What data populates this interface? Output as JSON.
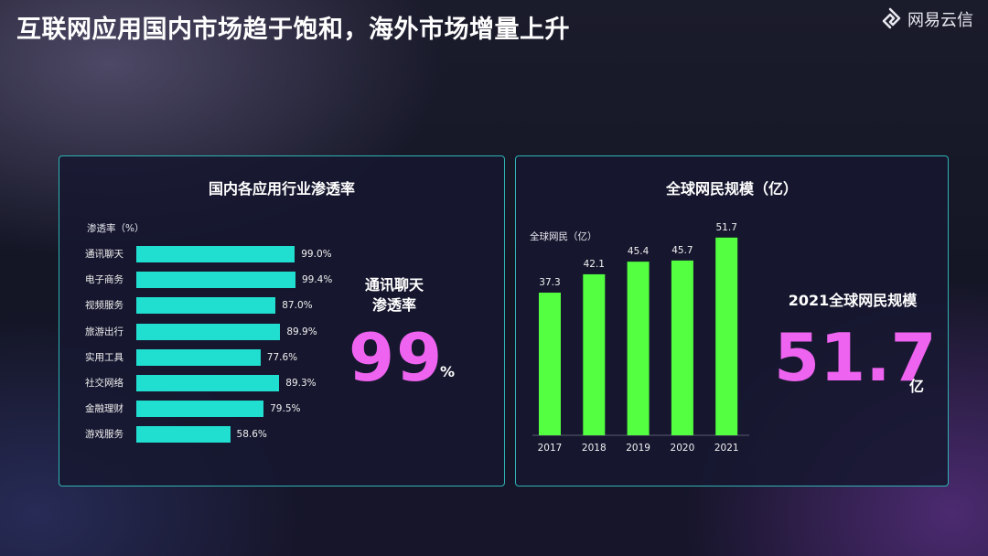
{
  "slide": {
    "title": "互联网应用国内市场趋于饱和，海外市场增量上升",
    "logo_text": "网易云信"
  },
  "left_panel": {
    "title": "国内各应用行业渗透率",
    "highlight_label_line1": "通讯聊天",
    "highlight_label_line2": "渗透率",
    "highlight_value": "99",
    "highlight_unit": "%"
  },
  "right_panel": {
    "title": "全球网民规模（亿）",
    "highlight_label": "2021全球网民规模",
    "highlight_value": "51.7",
    "highlight_unit": "亿"
  },
  "colors": {
    "hbar": "#21dfd0",
    "vbar": "#53ff40",
    "highlight": "#ee63ef",
    "panel_border": "#2fb3b3"
  },
  "chart_data": [
    {
      "type": "bar",
      "orientation": "horizontal",
      "title": "国内各应用行业渗透率",
      "axis_title": "渗透率（%）",
      "categories": [
        "通讯聊天",
        "电子商务",
        "视频服务",
        "旅游出行",
        "实用工具",
        "社交网络",
        "金融理财",
        "游戏服务"
      ],
      "values": [
        99.0,
        99.4,
        87.0,
        89.9,
        77.6,
        89.3,
        79.5,
        58.6
      ],
      "value_labels": [
        "99.0%",
        "99.4%",
        "87.0%",
        "89.9%",
        "77.6%",
        "89.3%",
        "79.5%",
        "58.6%"
      ],
      "xlim": [
        0,
        100
      ],
      "grid": false,
      "legend": "none"
    },
    {
      "type": "bar",
      "orientation": "vertical",
      "title": "全球网民规模（亿）",
      "axis_title": "全球网民（亿）",
      "categories": [
        "2017",
        "2018",
        "2019",
        "2020",
        "2021"
      ],
      "values": [
        37.3,
        42.1,
        45.4,
        45.7,
        51.7
      ],
      "value_labels": [
        "37.3",
        "42.1",
        "45.4",
        "45.7",
        "51.7"
      ],
      "ylim": [
        0,
        55
      ],
      "grid": false,
      "legend": "none"
    }
  ]
}
